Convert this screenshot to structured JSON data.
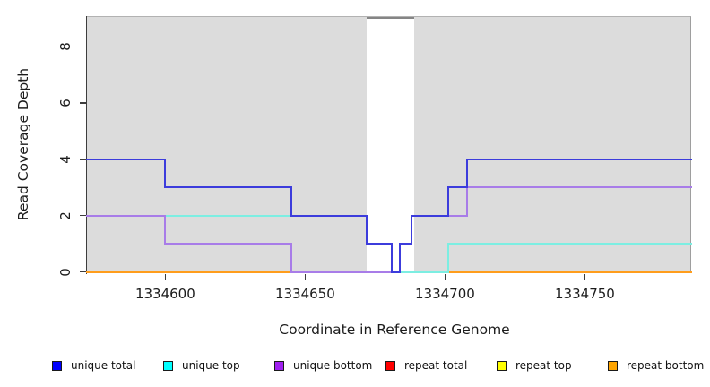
{
  "figure": {
    "x_axis_label": "Coordinate in Reference Genome",
    "y_axis_label": "Read Coverage Depth"
  },
  "chart_data": {
    "type": "line",
    "subtype": "step",
    "title": "",
    "xlabel": "Coordinate in Reference Genome",
    "ylabel": "Read Coverage Depth",
    "xlim": [
      1334572,
      1334788
    ],
    "ylim": [
      0,
      9
    ],
    "x_ticks": [
      1334600,
      1334650,
      1334700,
      1334750
    ],
    "y_ticks": [
      0,
      2,
      4,
      6,
      8
    ],
    "grid": false,
    "plot_background": "#dcdcdc",
    "mask_region": {
      "start": 1334672,
      "end": 1334689,
      "fill": "#ffffff",
      "top_line_color": "#858585"
    },
    "legend_position": "bottom",
    "series": [
      {
        "name": "unique total",
        "color": "#0000ff",
        "line_color": "#3c3cdc",
        "steps": [
          [
            1334572,
            4
          ],
          [
            1334600,
            3
          ],
          [
            1334645,
            2
          ],
          [
            1334672,
            1
          ],
          [
            1334681,
            0
          ],
          [
            1334684,
            1
          ],
          [
            1334688,
            2
          ],
          [
            1334701,
            3
          ],
          [
            1334708,
            4
          ]
        ]
      },
      {
        "name": "unique top",
        "color": "#00ffff",
        "line_color": "#7ceee2",
        "steps": [
          [
            1334572,
            2
          ],
          [
            1334672,
            1
          ],
          [
            1334681,
            0
          ],
          [
            1334701,
            1
          ]
        ]
      },
      {
        "name": "unique bottom",
        "color": "#a020f0",
        "line_color": "#a87ce8",
        "steps": [
          [
            1334572,
            2
          ],
          [
            1334600,
            1
          ],
          [
            1334645,
            0
          ],
          [
            1334684,
            1
          ],
          [
            1334688,
            2
          ],
          [
            1334708,
            3
          ]
        ]
      },
      {
        "name": "repeat total",
        "color": "#ff0000",
        "line_color": "#ff0000",
        "steps": [
          [
            1334572,
            0
          ]
        ]
      },
      {
        "name": "repeat top",
        "color": "#ffff00",
        "line_color": "#ffff00",
        "steps": [
          [
            1334572,
            0
          ]
        ]
      },
      {
        "name": "repeat bottom",
        "color": "#ffa500",
        "line_color": "#ff9d1c",
        "steps": [
          [
            1334572,
            0
          ]
        ]
      }
    ]
  }
}
